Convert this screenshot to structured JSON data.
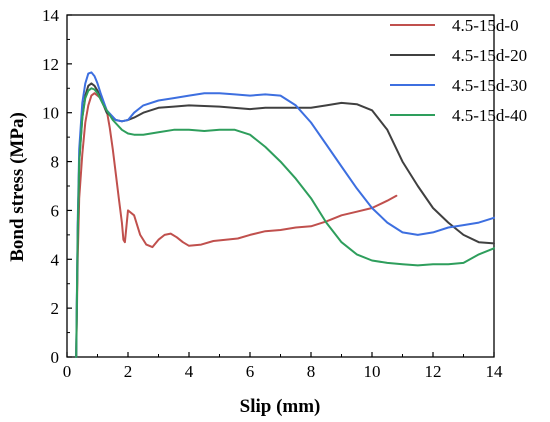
{
  "chart_data": {
    "type": "line",
    "xlabel": "Slip (mm)",
    "ylabel": "Bond stress (MPa)",
    "xlim": [
      0,
      14
    ],
    "ylim": [
      0,
      14
    ],
    "xticks": [
      0,
      2,
      4,
      6,
      8,
      10,
      12,
      14
    ],
    "yticks": [
      0,
      2,
      4,
      6,
      8,
      10,
      12,
      14
    ],
    "grid": false,
    "legend_position": "top-right",
    "series": [
      {
        "name": "4.5-15d-0",
        "color": "#c0504d",
        "x": [
          0.3,
          0.35,
          0.4,
          0.5,
          0.6,
          0.7,
          0.8,
          0.9,
          1.0,
          1.1,
          1.2,
          1.3,
          1.4,
          1.5,
          1.6,
          1.7,
          1.8,
          1.85,
          1.9,
          2.0,
          2.2,
          2.4,
          2.6,
          2.8,
          3.0,
          3.2,
          3.4,
          3.6,
          3.8,
          4.0,
          4.4,
          4.8,
          5.2,
          5.6,
          6.0,
          6.5,
          7.0,
          7.5,
          8.0,
          8.5,
          9.0,
          9.5,
          10.0,
          10.5,
          10.8
        ],
        "y": [
          0,
          4.0,
          6.5,
          8.3,
          9.6,
          10.3,
          10.7,
          10.8,
          10.7,
          10.6,
          10.4,
          10.1,
          9.4,
          8.5,
          7.5,
          6.5,
          5.5,
          4.8,
          4.7,
          6.0,
          5.8,
          5.0,
          4.6,
          4.5,
          4.8,
          5.0,
          5.05,
          4.9,
          4.7,
          4.55,
          4.6,
          4.75,
          4.8,
          4.85,
          5.0,
          5.15,
          5.2,
          5.3,
          5.35,
          5.55,
          5.8,
          5.95,
          6.1,
          6.4,
          6.6
        ]
      },
      {
        "name": "4.5-15d-20",
        "color": "#404040",
        "x": [
          0.3,
          0.35,
          0.4,
          0.5,
          0.6,
          0.7,
          0.8,
          0.9,
          1.0,
          1.1,
          1.3,
          1.6,
          1.8,
          2.0,
          2.2,
          2.5,
          3.0,
          3.5,
          4.0,
          5.0,
          6.0,
          6.5,
          7.0,
          8.0,
          8.5,
          9.0,
          9.5,
          10.0,
          10.5,
          11.0,
          11.5,
          12.0,
          12.5,
          13.0,
          13.5,
          14.0
        ],
        "y": [
          0,
          5.0,
          8.0,
          9.8,
          10.7,
          11.1,
          11.2,
          11.1,
          10.9,
          10.6,
          10.0,
          9.7,
          9.65,
          9.7,
          9.8,
          10.0,
          10.2,
          10.25,
          10.3,
          10.25,
          10.15,
          10.2,
          10.2,
          10.2,
          10.3,
          10.4,
          10.35,
          10.1,
          9.3,
          8.0,
          7.0,
          6.1,
          5.5,
          5.0,
          4.7,
          4.65
        ]
      },
      {
        "name": "4.5-15d-30",
        "color": "#3d6fe0",
        "x": [
          0.3,
          0.35,
          0.4,
          0.5,
          0.6,
          0.7,
          0.8,
          0.9,
          1.0,
          1.1,
          1.3,
          1.6,
          1.8,
          2.0,
          2.2,
          2.5,
          3.0,
          3.5,
          4.0,
          4.5,
          5.0,
          5.5,
          6.0,
          6.5,
          7.0,
          7.5,
          8.0,
          8.5,
          9.0,
          9.5,
          10.0,
          10.5,
          11.0,
          11.5,
          12.0,
          12.5,
          13.0,
          13.5,
          14.0
        ],
        "y": [
          0,
          5.5,
          8.5,
          10.4,
          11.2,
          11.6,
          11.65,
          11.5,
          11.2,
          10.8,
          10.1,
          9.7,
          9.65,
          9.7,
          10.0,
          10.3,
          10.5,
          10.6,
          10.7,
          10.8,
          10.8,
          10.75,
          10.7,
          10.75,
          10.7,
          10.3,
          9.6,
          8.7,
          7.8,
          6.9,
          6.1,
          5.5,
          5.1,
          5.0,
          5.1,
          5.3,
          5.4,
          5.5,
          5.7
        ]
      },
      {
        "name": "4.5-15d-40",
        "color": "#2e9e5c",
        "x": [
          0.3,
          0.35,
          0.4,
          0.5,
          0.6,
          0.7,
          0.8,
          0.9,
          1.0,
          1.2,
          1.5,
          1.8,
          2.0,
          2.2,
          2.5,
          3.0,
          3.5,
          4.0,
          4.5,
          5.0,
          5.5,
          6.0,
          6.5,
          7.0,
          7.5,
          8.0,
          8.5,
          9.0,
          9.5,
          10.0,
          10.5,
          11.0,
          11.5,
          12.0,
          12.5,
          13.0,
          13.5,
          14.0
        ],
        "y": [
          0,
          5.0,
          8.0,
          9.8,
          10.6,
          10.9,
          11.0,
          10.95,
          10.8,
          10.3,
          9.7,
          9.3,
          9.15,
          9.1,
          9.1,
          9.2,
          9.3,
          9.3,
          9.25,
          9.3,
          9.3,
          9.1,
          8.6,
          8.0,
          7.3,
          6.5,
          5.5,
          4.7,
          4.2,
          3.95,
          3.85,
          3.8,
          3.75,
          3.8,
          3.8,
          3.85,
          4.2,
          4.45
        ]
      }
    ]
  }
}
